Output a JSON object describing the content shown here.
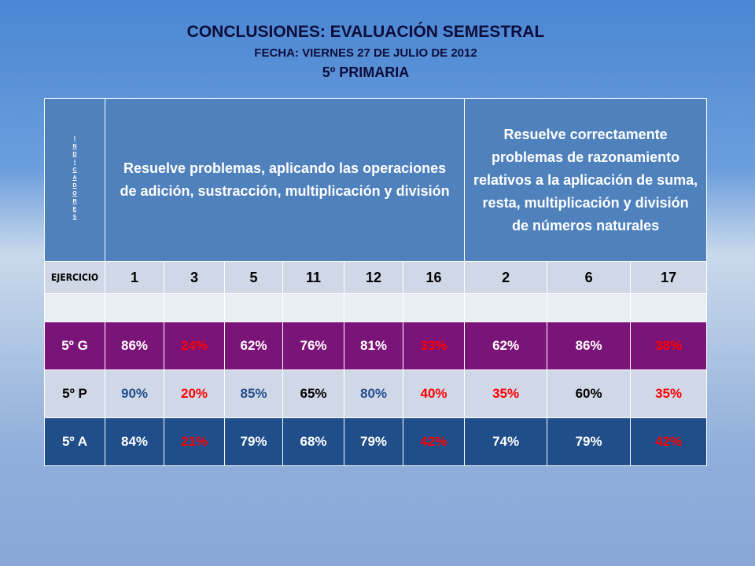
{
  "header": {
    "title": "CONCLUSIONES: EVALUACIÓN SEMESTRAL",
    "date": "FECHA: VIERNES 27 DE JULIO DE 2012",
    "grade": "5º PRIMARIA"
  },
  "table": {
    "indicators_letters": [
      "I",
      "N",
      "D",
      "I",
      "C",
      "A",
      "D",
      "O",
      "R",
      "E",
      "S"
    ],
    "indicator_1": "Resuelve problemas, aplicando las operaciones de adición, sustracción, multiplicación y división",
    "indicator_2": "Resuelve correctamente problemas de razonamiento relativos a la aplicación de suma, resta, multiplicación y división de números naturales",
    "exercise_label": "EJERCICIO",
    "exercises": [
      "1",
      "3",
      "5",
      "11",
      "12",
      "16",
      "2",
      "6",
      "17"
    ],
    "rows": [
      {
        "group": "5º G",
        "values": [
          "86%",
          "24%",
          "62%",
          "76%",
          "81%",
          "33%",
          "62%",
          "86%",
          "38%"
        ]
      },
      {
        "group": "5º P",
        "values": [
          "90%",
          "20%",
          "85%",
          "65%",
          "80%",
          "40%",
          "35%",
          "60%",
          "35%"
        ]
      },
      {
        "group": "5º A",
        "values": [
          "84%",
          "21%",
          "79%",
          "68%",
          "79%",
          "42%",
          "74%",
          "79%",
          "42%"
        ]
      }
    ]
  },
  "colors": {
    "header_blue": "#4f81bd",
    "row_g_purple": "#7b1478",
    "row_p_gray": "#d0d8e8",
    "row_a_navy": "#1f4e8a",
    "highlight_red": "#ff0000"
  }
}
